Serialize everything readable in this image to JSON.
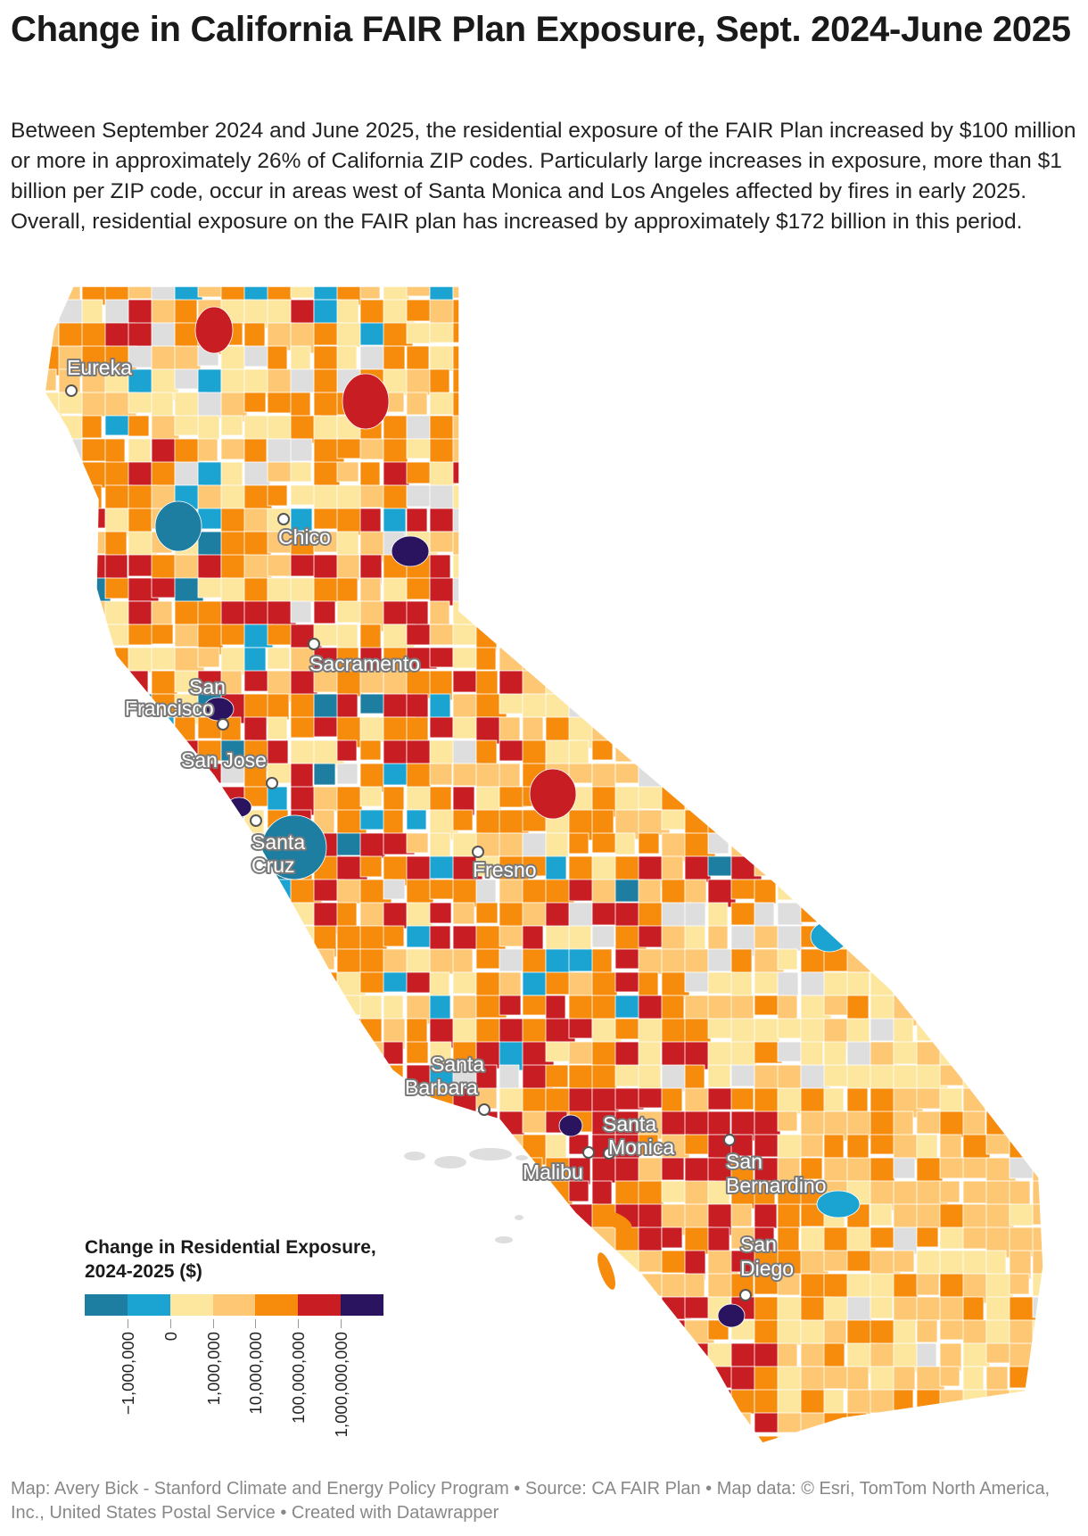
{
  "title": "Change in California FAIR Plan Exposure, Sept. 2024-June 2025",
  "description": "Between September 2024 and June 2025, the residential exposure of the FAIR Plan increased by $100 million or more in approximately 26% of California ZIP codes. Particularly large increases in exposure, more than $1 billion per ZIP code, occur in areas west of Santa Monica and Los Angeles affected by fires in early 2025. Overall, residential exposure on the FAIR plan has increased by approximately $172 billion in this period.",
  "legend": {
    "title": "Change in Residential Exposure, 2024-2025 ($)",
    "colors": [
      "#1e7ea1",
      "#1ba3d1",
      "#fde69e",
      "#fdc773",
      "#f68b0c",
      "#c91d24",
      "#2a1460"
    ],
    "tick_labels": [
      "−1,000,000",
      "0",
      "1,000,000",
      "10,000,000",
      "100,000,000",
      "1,000,000,000"
    ]
  },
  "cities": [
    {
      "name": "Eureka"
    },
    {
      "name": "Chico"
    },
    {
      "name": "Sacramento"
    },
    {
      "name": "San Francisco"
    },
    {
      "name": "San Jose"
    },
    {
      "name": "Santa Cruz"
    },
    {
      "name": "Fresno"
    },
    {
      "name": "Santa Barbara"
    },
    {
      "name": "Santa Monica"
    },
    {
      "name": "Malibu"
    },
    {
      "name": "San Bernardino"
    },
    {
      "name": "San Diego"
    }
  ],
  "colors": {
    "no_data": "#dedede",
    "zip_boundary": "#ffffff"
  },
  "footer": "Map: Avery Bick - Stanford Climate and Energy Policy Program • Source: CA FAIR Plan • Map data: © Esri, TomTom North America, Inc., United States Postal Service  • Created with Datawrapper"
}
